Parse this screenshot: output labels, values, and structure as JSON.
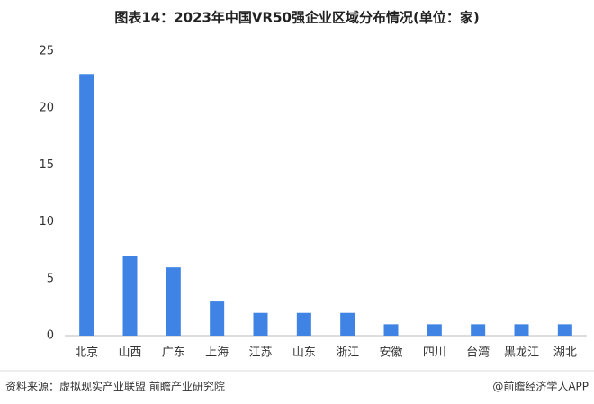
{
  "chart_data": {
    "type": "bar",
    "title": "图表14：2023年中国VR50强企业区域分布情况(单位：家)",
    "categories": [
      "北京",
      "山西",
      "广东",
      "上海",
      "江苏",
      "山东",
      "浙江",
      "安徽",
      "四川",
      "台湾",
      "黑龙江",
      "湖北"
    ],
    "values": [
      23,
      7,
      6,
      3,
      2,
      2,
      2,
      1,
      1,
      1,
      1,
      1
    ],
    "color": "#3f84e5",
    "ylim": [
      0,
      25
    ],
    "yticks": [
      0,
      5,
      10,
      15,
      20,
      25
    ],
    "grid": false,
    "source": "资料来源：虚拟现实产业联盟 前瞻产业研究院",
    "credit": "@前瞻经济学人APP"
  }
}
